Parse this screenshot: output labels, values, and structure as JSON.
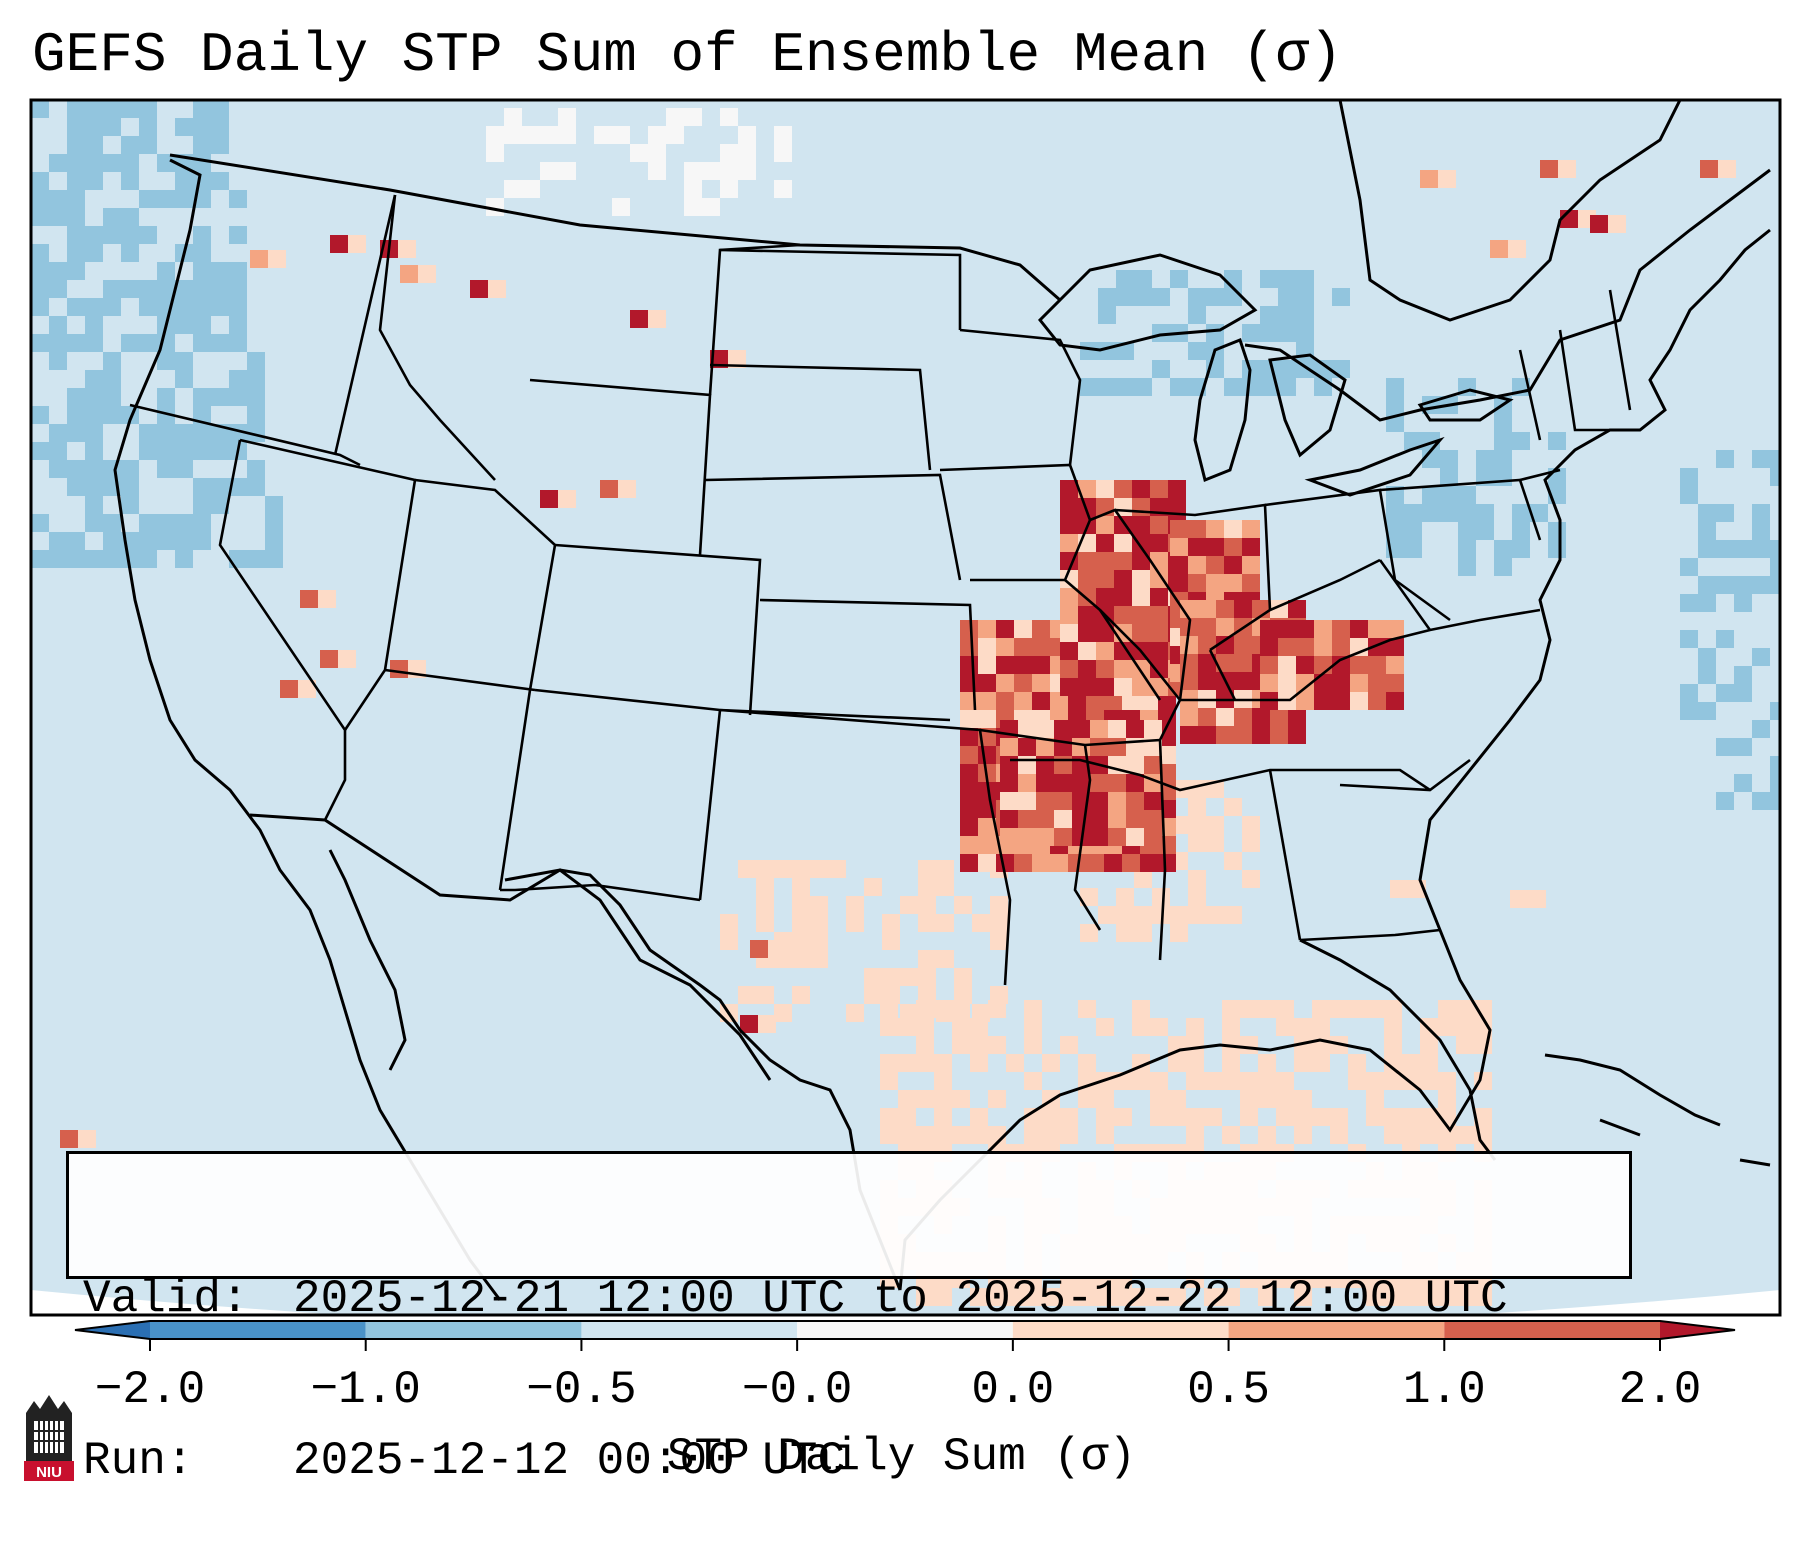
{
  "title": "GEFS Daily STP Sum of Ensemble Mean (σ)",
  "info": {
    "valid_key": "Valid:",
    "valid_value": "2025-12-21 12:00 UTC to 2025-12-22 12:00 UTC",
    "run_key": "Run:",
    "run_value": "2025-12-12 00:00 UTC"
  },
  "colorbar": {
    "label": "STP Daily Sum (σ)",
    "ticks": [
      "−2.0",
      "−1.0",
      "−0.5",
      "−0.0",
      "0.0",
      "0.5",
      "1.0",
      "2.0"
    ],
    "bins": [
      {
        "from": "below",
        "to": "−2.0",
        "color": "#2b6fb3"
      },
      {
        "from": "−2.0",
        "to": "−1.0",
        "color": "#4a93c8"
      },
      {
        "from": "−1.0",
        "to": "−0.5",
        "color": "#92c5de"
      },
      {
        "from": "−0.5",
        "to": "−0.0",
        "color": "#d1e5f0"
      },
      {
        "from": "−0.0",
        "to": "0.0",
        "color": "#f7f7f7"
      },
      {
        "from": "0.0",
        "to": "0.5",
        "color": "#fddbc7"
      },
      {
        "from": "0.5",
        "to": "1.0",
        "color": "#f4a582"
      },
      {
        "from": "1.0",
        "to": "2.0",
        "color": "#d6604d"
      },
      {
        "from": "2.0",
        "to": "above",
        "color": "#b2182b"
      }
    ]
  },
  "colors": {
    "background_field": "#d1e5f0",
    "ocean_negative": "#92c5de",
    "low_positive": "#fddbc7",
    "mid_positive": "#f4a582",
    "high_positive": "#d6604d",
    "max_positive": "#b2182b"
  },
  "logo": {
    "text": "NIU",
    "icon": "university-tower-icon"
  }
}
